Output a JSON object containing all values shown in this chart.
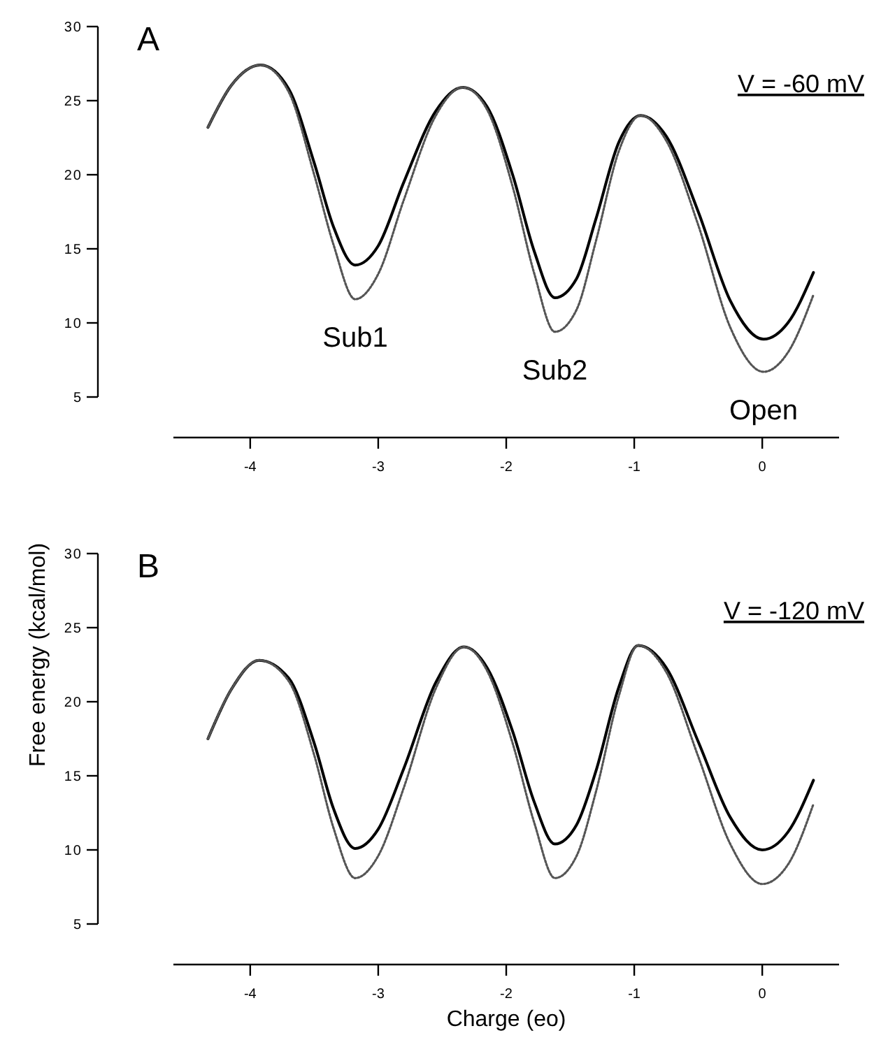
{
  "chart_data": [
    {
      "type": "line",
      "title": "A",
      "x": [
        -4.33,
        -4.15,
        -3.92,
        -3.7,
        -3.5,
        -3.35,
        -3.18,
        -3.0,
        -2.8,
        -2.55,
        -2.34,
        -2.15,
        -1.95,
        -1.78,
        -1.62,
        -1.45,
        -1.3,
        -1.12,
        -0.95,
        -0.75,
        -0.5,
        -0.25,
        0.01,
        0.2,
        0.4
      ],
      "series": [
        {
          "color": "#000000",
          "line_style": "solid",
          "values": [
            23.2,
            26.0,
            27.4,
            25.8,
            20.8,
            16.5,
            13.9,
            15.2,
            19.5,
            24.3,
            25.9,
            24.6,
            20.0,
            14.8,
            11.7,
            13.0,
            17.0,
            22.2,
            24.0,
            22.6,
            17.5,
            11.5,
            8.9,
            10.0,
            13.4
          ]
        },
        {
          "color": "#555555",
          "line_style": "dotted",
          "values": [
            23.2,
            26.0,
            27.4,
            25.6,
            20.0,
            15.3,
            11.6,
            13.3,
            18.3,
            24.0,
            25.9,
            24.4,
            19.2,
            13.3,
            9.4,
            10.9,
            15.5,
            21.6,
            24.0,
            22.3,
            16.6,
            9.7,
            6.7,
            8.0,
            11.9
          ]
        }
      ],
      "annotations": [
        "V = -60 mV",
        {
          "text": "Sub1",
          "x": -3.18,
          "y": 11.6
        },
        {
          "text": "Sub2",
          "x": -1.62,
          "y": 9.4
        },
        {
          "text": "Open",
          "x": 0.01,
          "y": 6.7
        }
      ],
      "xlim": [
        -4.6,
        0.6
      ],
      "xticks": [
        -4,
        -3,
        -2,
        -1,
        0
      ],
      "ylim": [
        5,
        30
      ],
      "yticks": [
        5,
        10,
        15,
        20,
        25,
        30
      ]
    },
    {
      "type": "line",
      "title": "B",
      "xlabel": "Charge (eo)",
      "ylabel": "Free energy (kcal/mol)",
      "x": [
        -4.33,
        -4.15,
        -3.93,
        -3.7,
        -3.5,
        -3.35,
        -3.18,
        -3.0,
        -2.8,
        -2.55,
        -2.33,
        -2.15,
        -1.95,
        -1.78,
        -1.62,
        -1.45,
        -1.3,
        -1.12,
        -0.97,
        -0.75,
        -0.5,
        -0.25,
        0.0,
        0.2,
        0.4
      ],
      "series": [
        {
          "color": "#000000",
          "line_style": "solid",
          "values": [
            17.5,
            20.8,
            22.8,
            21.6,
            17.2,
            12.8,
            10.1,
            11.4,
            15.5,
            21.3,
            23.7,
            22.3,
            18.0,
            13.2,
            10.4,
            11.7,
            15.3,
            21.0,
            23.8,
            22.3,
            17.3,
            12.2,
            10.0,
            11.2,
            14.7
          ]
        },
        {
          "color": "#555555",
          "line_style": "dotted",
          "values": [
            17.5,
            20.8,
            22.8,
            21.4,
            16.4,
            11.5,
            8.1,
            9.6,
            14.2,
            20.9,
            23.7,
            22.1,
            17.2,
            11.8,
            8.1,
            9.6,
            13.9,
            20.4,
            23.8,
            22.0,
            16.3,
            10.4,
            7.7,
            9.0,
            13.1
          ]
        }
      ],
      "annotations": [
        "V = -120 mV"
      ],
      "xlim": [
        -4.6,
        0.6
      ],
      "xticks": [
        -4,
        -3,
        -2,
        -1,
        0
      ],
      "ylim": [
        5,
        30
      ],
      "yticks": [
        5,
        10,
        15,
        20,
        25,
        30
      ]
    }
  ]
}
